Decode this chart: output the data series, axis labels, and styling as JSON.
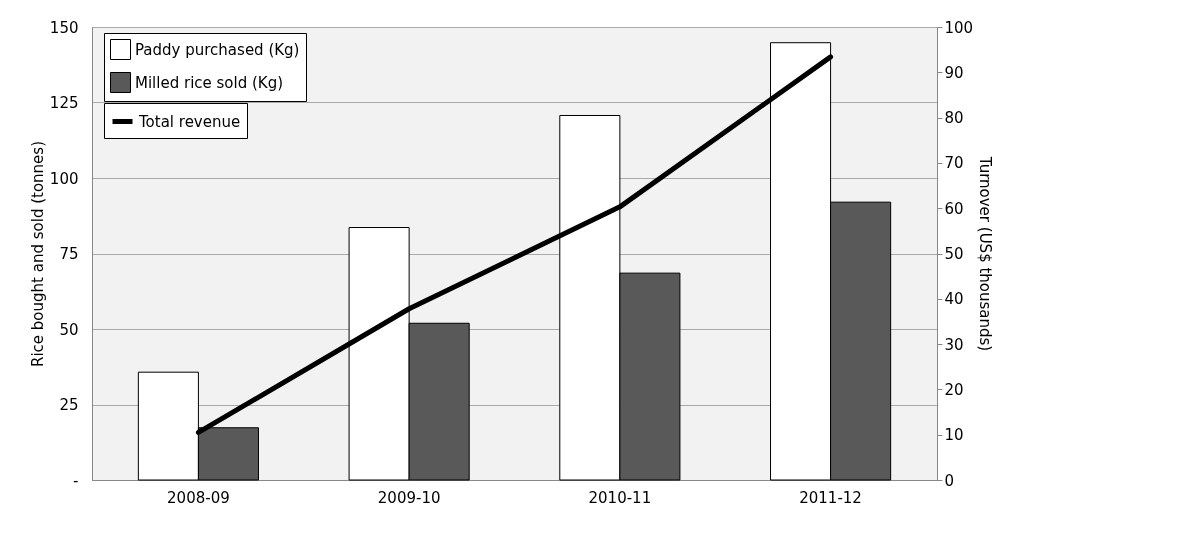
{
  "chart_data": {
    "type": "bar",
    "ylabel": "Rice bought and sold (tonnes)",
    "y2label": "Turnover (US$ thousands)",
    "categories": [
      "2008-09",
      "2009-10",
      "2010-11",
      "2011-12"
    ],
    "series": [
      {
        "name": "Paddy purchased (Kg)",
        "color": "#ffffff",
        "values": [
          35.7,
          83.6,
          120.7,
          144.8
        ]
      },
      {
        "name": "Milled rice sold (Kg)",
        "color": "#595959",
        "values": [
          17.3,
          51.9,
          68.5,
          92.0
        ]
      },
      {
        "name": "Total revenue",
        "type": "line",
        "axis": "y2",
        "color": "#000000",
        "values": [
          10.5,
          37.8,
          60.3,
          93.4
        ]
      }
    ],
    "ylim": [
      0,
      150
    ],
    "yticks": [
      {
        "value": 0,
        "label": "-"
      },
      25,
      50,
      75,
      100,
      125,
      150
    ],
    "y2lim": [
      0,
      100
    ],
    "y2ticks": [
      0,
      10,
      20,
      30,
      40,
      50,
      60,
      70,
      80,
      90,
      100
    ],
    "grid": "y",
    "legend": "top left",
    "marker": "none"
  }
}
